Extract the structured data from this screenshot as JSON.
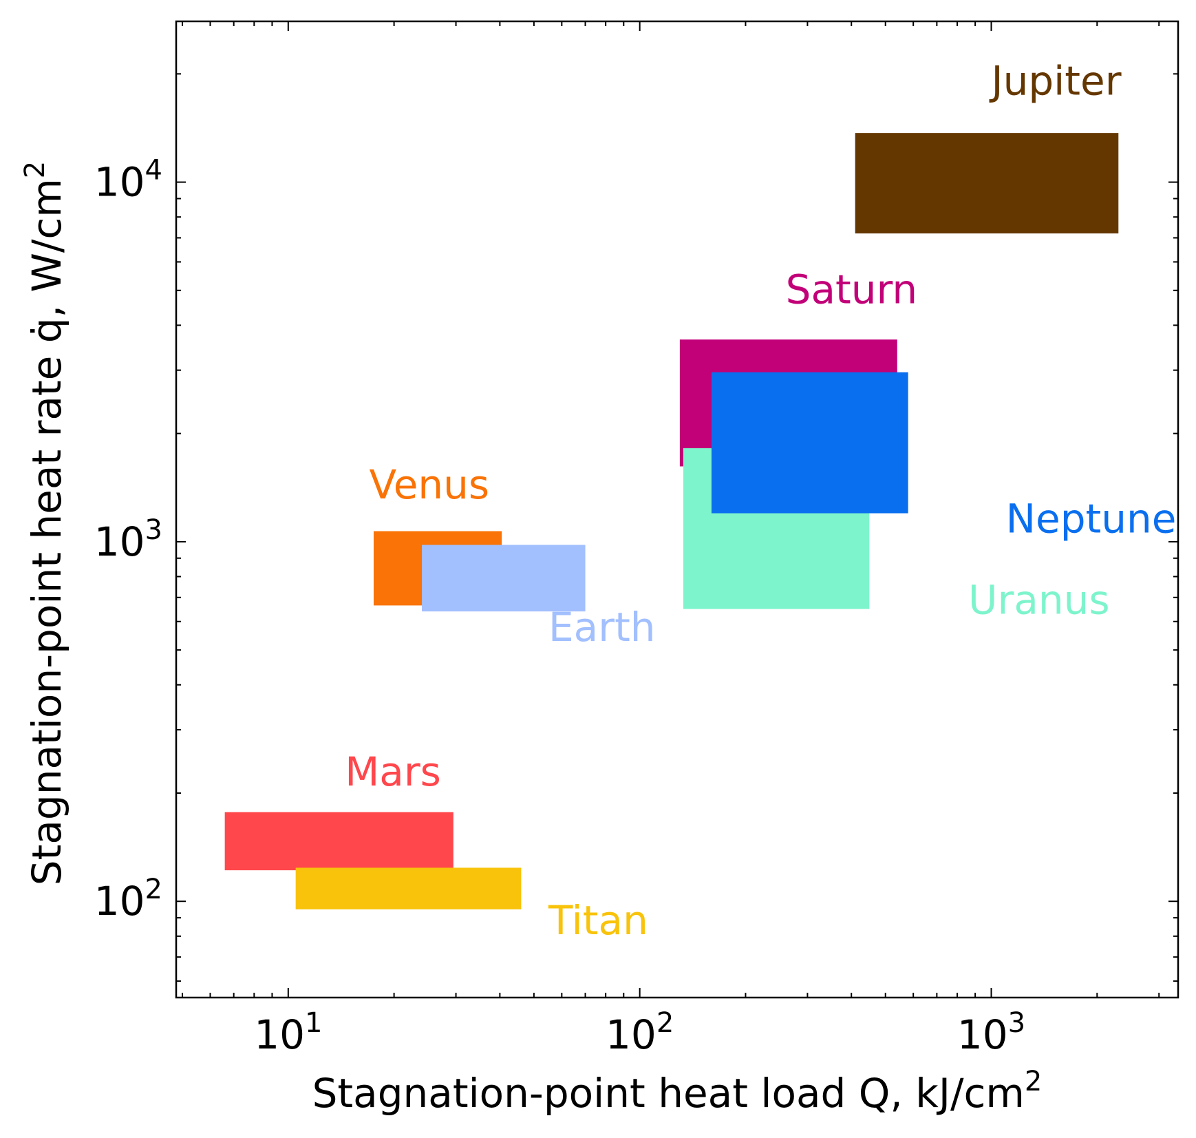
{
  "chart_data": {
    "type": "heatmap",
    "title": "",
    "xlabel": "Stagnation-point heat load Q, kJ/cm",
    "xlabel_sup": "2",
    "ylabel": "Stagnation-point heat rate q̇, W/cm",
    "ylabel_sup": "2",
    "x_scale": "log",
    "y_scale": "log",
    "xlim": [
      4.8,
      3400
    ],
    "ylim": [
      54,
      28000
    ],
    "grid": false,
    "x_ticks": [
      {
        "value": 10,
        "base": "10",
        "exp": "1"
      },
      {
        "value": 100,
        "base": "10",
        "exp": "2"
      },
      {
        "value": 1000,
        "base": "10",
        "exp": "3"
      }
    ],
    "y_ticks": [
      {
        "value": 100,
        "base": "10",
        "exp": "2"
      },
      {
        "value": 1000,
        "base": "10",
        "exp": "3"
      },
      {
        "value": 10000,
        "base": "10",
        "exp": "4"
      }
    ],
    "regions": [
      {
        "name": "Jupiter",
        "color": "#653700",
        "q_min": 410,
        "q_max": 2300,
        "qdot_min": 7200,
        "qdot_max": 13700,
        "label_q": 1000,
        "label_qdot": 17500
      },
      {
        "name": "Saturn",
        "color": "#c20078",
        "q_min": 130,
        "q_max": 540,
        "qdot_min": 1620,
        "qdot_max": 3650,
        "label_q": 260,
        "label_qdot": 4600
      },
      {
        "name": "Uranus",
        "color": "#7ef4cc",
        "q_min": 133,
        "q_max": 450,
        "qdot_min": 650,
        "qdot_max": 1820,
        "label_q": 860,
        "label_qdot": 630
      },
      {
        "name": "Neptune",
        "color": "#0a6fef",
        "q_min": 160,
        "q_max": 580,
        "qdot_min": 1200,
        "qdot_max": 2960,
        "label_q": 1100,
        "label_qdot": 1060
      },
      {
        "name": "Venus",
        "color": "#f97306",
        "q_min": 17.5,
        "q_max": 40.5,
        "qdot_min": 665,
        "qdot_max": 1070,
        "label_q": 17,
        "label_qdot": 1320
      },
      {
        "name": "Earth",
        "color": "#a2bffe",
        "q_min": 24,
        "q_max": 70,
        "qdot_min": 640,
        "qdot_max": 980,
        "label_q": 55,
        "label_qdot": 530
      },
      {
        "name": "Mars",
        "color": "#ff474c",
        "q_min": 6.6,
        "q_max": 29.5,
        "qdot_min": 122,
        "qdot_max": 177,
        "label_q": 14.5,
        "label_qdot": 210
      },
      {
        "name": "Titan",
        "color": "#f8c30a",
        "q_min": 10.5,
        "q_max": 46,
        "qdot_min": 95,
        "qdot_max": 124,
        "label_q": 55,
        "label_qdot": 81
      }
    ]
  }
}
